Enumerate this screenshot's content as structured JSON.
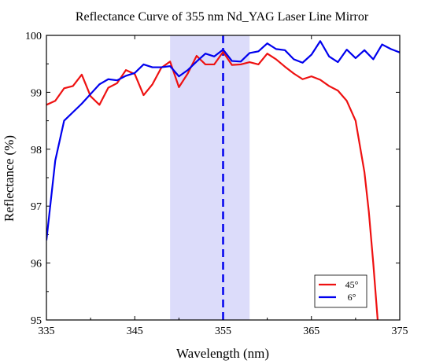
{
  "chart_data": {
    "type": "line",
    "title": "Reflectance Curve of 355 nm Nd_YAG Laser Line Mirror",
    "xlabel": "Wavelength (nm)",
    "ylabel": "Reflectance (%)",
    "xlim": [
      335,
      375
    ],
    "ylim": [
      95,
      100
    ],
    "xticks": [
      335,
      345,
      355,
      365,
      375
    ],
    "yticks": [
      95,
      96,
      97,
      98,
      99,
      100
    ],
    "grid": false,
    "legend_position": "bottom-right",
    "highlight_band": {
      "x_start": 349,
      "x_end": 358,
      "color": "#dcdcfa"
    },
    "reference_line": {
      "x": 355,
      "color": "#0000ee",
      "style": "dashed"
    },
    "series": [
      {
        "name": "45°",
        "color": "#ee1111",
        "x": [
          335,
          336,
          337,
          338,
          339,
          340,
          341,
          342,
          343,
          344,
          345,
          346,
          347,
          348,
          349,
          350,
          351,
          352,
          353,
          354,
          355,
          356,
          357,
          358,
          359,
          360,
          361,
          362,
          363,
          364,
          365,
          366,
          367,
          368,
          369,
          370,
          371,
          371.5,
          372,
          372.5
        ],
        "y": [
          98.78,
          98.85,
          99.07,
          99.11,
          99.31,
          98.93,
          98.78,
          99.08,
          99.16,
          99.39,
          99.32,
          98.95,
          99.14,
          99.43,
          99.54,
          99.09,
          99.33,
          99.64,
          99.49,
          99.49,
          99.71,
          99.48,
          99.49,
          99.53,
          99.49,
          99.68,
          99.58,
          99.45,
          99.33,
          99.23,
          99.28,
          99.22,
          99.11,
          99.03,
          98.85,
          98.5,
          97.6,
          96.9,
          96.0,
          95.0
        ]
      },
      {
        "name": "6°",
        "color": "#0000ee",
        "x": [
          335,
          336,
          337,
          338,
          339,
          340,
          341,
          342,
          343,
          344,
          345,
          346,
          347,
          348,
          349,
          350,
          351,
          352,
          353,
          354,
          355,
          356,
          357,
          358,
          359,
          360,
          361,
          362,
          363,
          364,
          365,
          366,
          367,
          368,
          369,
          370,
          371,
          372,
          373,
          374,
          375
        ],
        "y": [
          96.4,
          97.8,
          98.5,
          98.65,
          98.8,
          98.97,
          99.14,
          99.23,
          99.21,
          99.29,
          99.34,
          99.49,
          99.44,
          99.44,
          99.46,
          99.28,
          99.39,
          99.54,
          99.68,
          99.63,
          99.75,
          99.55,
          99.54,
          99.69,
          99.72,
          99.86,
          99.76,
          99.74,
          99.58,
          99.52,
          99.66,
          99.9,
          99.63,
          99.53,
          99.75,
          99.6,
          99.74,
          99.58,
          99.84,
          99.76,
          99.7
        ]
      }
    ]
  }
}
